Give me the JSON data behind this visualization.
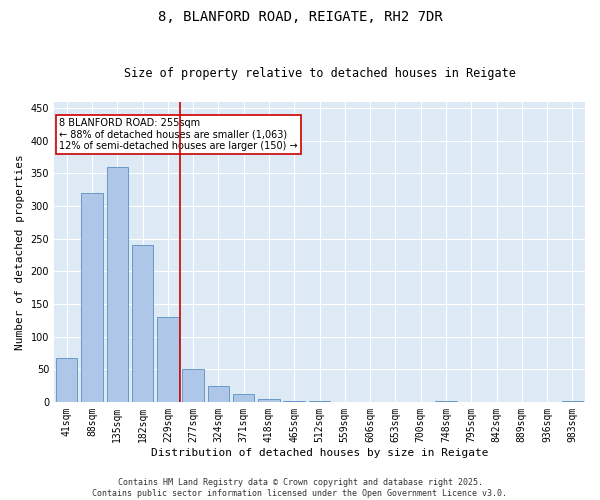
{
  "title1": "8, BLANFORD ROAD, REIGATE, RH2 7DR",
  "title2": "Size of property relative to detached houses in Reigate",
  "xlabel": "Distribution of detached houses by size in Reigate",
  "ylabel": "Number of detached properties",
  "categories": [
    "41sqm",
    "88sqm",
    "135sqm",
    "182sqm",
    "229sqm",
    "277sqm",
    "324sqm",
    "371sqm",
    "418sqm",
    "465sqm",
    "512sqm",
    "559sqm",
    "606sqm",
    "653sqm",
    "700sqm",
    "748sqm",
    "795sqm",
    "842sqm",
    "889sqm",
    "936sqm",
    "983sqm"
  ],
  "values": [
    67,
    320,
    360,
    240,
    130,
    50,
    25,
    12,
    5,
    1,
    1,
    0,
    0,
    0,
    0,
    2,
    0,
    0,
    0,
    0,
    2
  ],
  "bar_color": "#aec6e8",
  "bar_edge_color": "#5a8fc0",
  "vertical_line_x": 4.5,
  "vertical_line_color": "#cc0000",
  "annotation_text": "8 BLANFORD ROAD: 255sqm\n← 88% of detached houses are smaller (1,063)\n12% of semi-detached houses are larger (150) →",
  "annotation_box_color": "#cc0000",
  "annotation_box_facecolor": "white",
  "ylim": [
    0,
    460
  ],
  "yticks": [
    0,
    50,
    100,
    150,
    200,
    250,
    300,
    350,
    400,
    450
  ],
  "background_color": "#dde9f5",
  "grid_color": "white",
  "footer_text": "Contains HM Land Registry data © Crown copyright and database right 2025.\nContains public sector information licensed under the Open Government Licence v3.0.",
  "title_fontsize": 10,
  "subtitle_fontsize": 8.5,
  "axis_label_fontsize": 8,
  "tick_fontsize": 7,
  "annotation_fontsize": 7,
  "footer_fontsize": 6
}
